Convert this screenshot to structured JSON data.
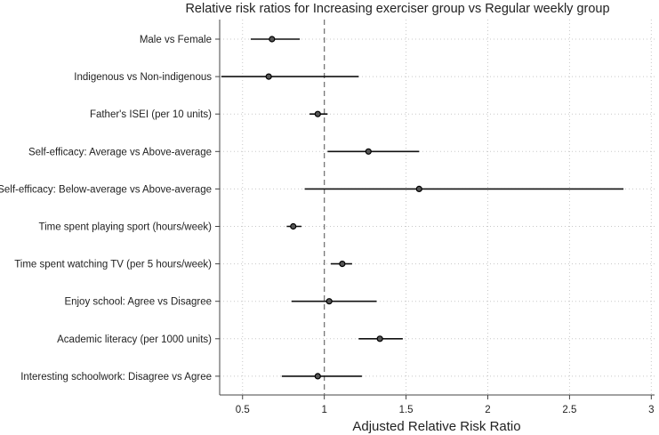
{
  "chart_data": {
    "type": "forest",
    "title": "Relative risk ratios for Increasing exerciser group vs Regular weekly group",
    "xlabel": "Adjusted Relative Risk Ratio",
    "ylabel": "",
    "xlim": [
      0.36,
      3.02
    ],
    "x_ticks": [
      0.5,
      1,
      1.5,
      2,
      2.5,
      3
    ],
    "x_tick_labels": [
      "0.5",
      "1",
      "1.5",
      "2",
      "2.5",
      "3"
    ],
    "reference_line": 1,
    "grid": true,
    "categories": [
      "Male vs Female",
      "Indigenous vs Non-indigenous",
      "Father's ISEI (per 10 units)",
      "Self-efficacy: Average vs Above-average",
      "Self-efficacy: Below-average vs Above-average",
      "Time spent playing sport (hours/week)",
      "Time spent watching TV (per 5 hours/week)",
      "Enjoy school: Agree vs Disagree",
      "Academic literacy (per 1000 units)",
      "Interesting schoolwork: Disagree vs Agree"
    ],
    "estimates": [
      0.68,
      0.66,
      0.96,
      1.27,
      1.58,
      0.81,
      1.11,
      1.03,
      1.34,
      0.96
    ],
    "lower": [
      0.55,
      0.37,
      0.91,
      1.02,
      0.88,
      0.77,
      1.04,
      0.8,
      1.21,
      0.74
    ],
    "upper": [
      0.85,
      1.21,
      1.02,
      1.58,
      2.83,
      0.86,
      1.17,
      1.32,
      1.48,
      1.23
    ]
  }
}
